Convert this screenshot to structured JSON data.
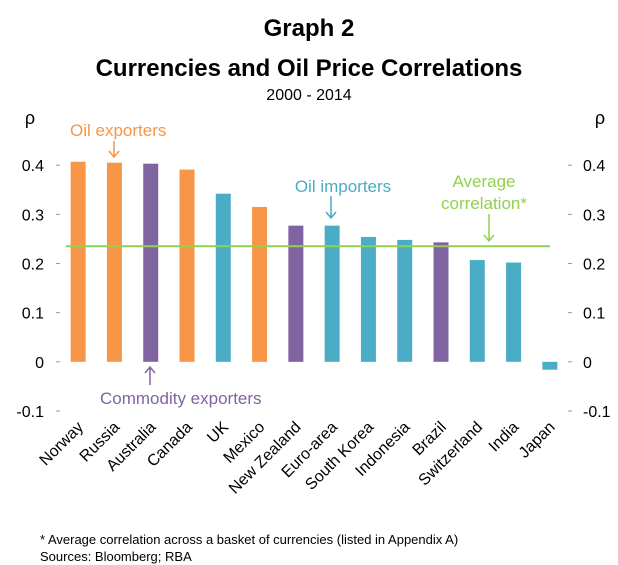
{
  "chart_data": {
    "type": "bar",
    "heading": "Graph 2",
    "title": "Currencies and Oil Price Correlations",
    "subtitle": "2000 - 2014",
    "y_label": "ρ",
    "y2_label": "ρ",
    "categories": [
      "Norway",
      "Russia",
      "Australia",
      "Canada",
      "UK",
      "Mexico",
      "New Zealand",
      "Euro-area",
      "South Korea",
      "Indonesia",
      "Brazil",
      "Switzerland",
      "India",
      "Japan"
    ],
    "values": [
      0.407,
      0.405,
      0.403,
      0.391,
      0.342,
      0.315,
      0.277,
      0.277,
      0.254,
      0.248,
      0.243,
      0.207,
      0.202,
      -0.016
    ],
    "colors": [
      "#f79646",
      "#f79646",
      "#8064a2",
      "#f79646",
      "#4bacc6",
      "#f79646",
      "#8064a2",
      "#4bacc6",
      "#4bacc6",
      "#4bacc6",
      "#8064a2",
      "#4bacc6",
      "#4bacc6",
      "#4bacc6"
    ],
    "average": 0.235,
    "average_color": "#92d050",
    "ylim": [
      -0.1,
      0.5
    ],
    "yticks": [
      -0.1,
      0,
      0.1,
      0.2,
      0.3,
      0.4
    ],
    "annotations": [
      {
        "lines": [
          "Oil exporters"
        ],
        "color": "#f79646"
      },
      {
        "lines": [
          "Oil importers"
        ],
        "color": "#4bacc6"
      },
      {
        "lines": [
          "Average",
          "correlation*"
        ],
        "color": "#92d050"
      },
      {
        "lines": [
          "Commodity exporters"
        ],
        "color": "#8064a2"
      }
    ],
    "footnotes": [
      "* Average correlation across a basket of currencies (listed in Appendix A)",
      "Sources: Bloomberg; RBA"
    ]
  }
}
